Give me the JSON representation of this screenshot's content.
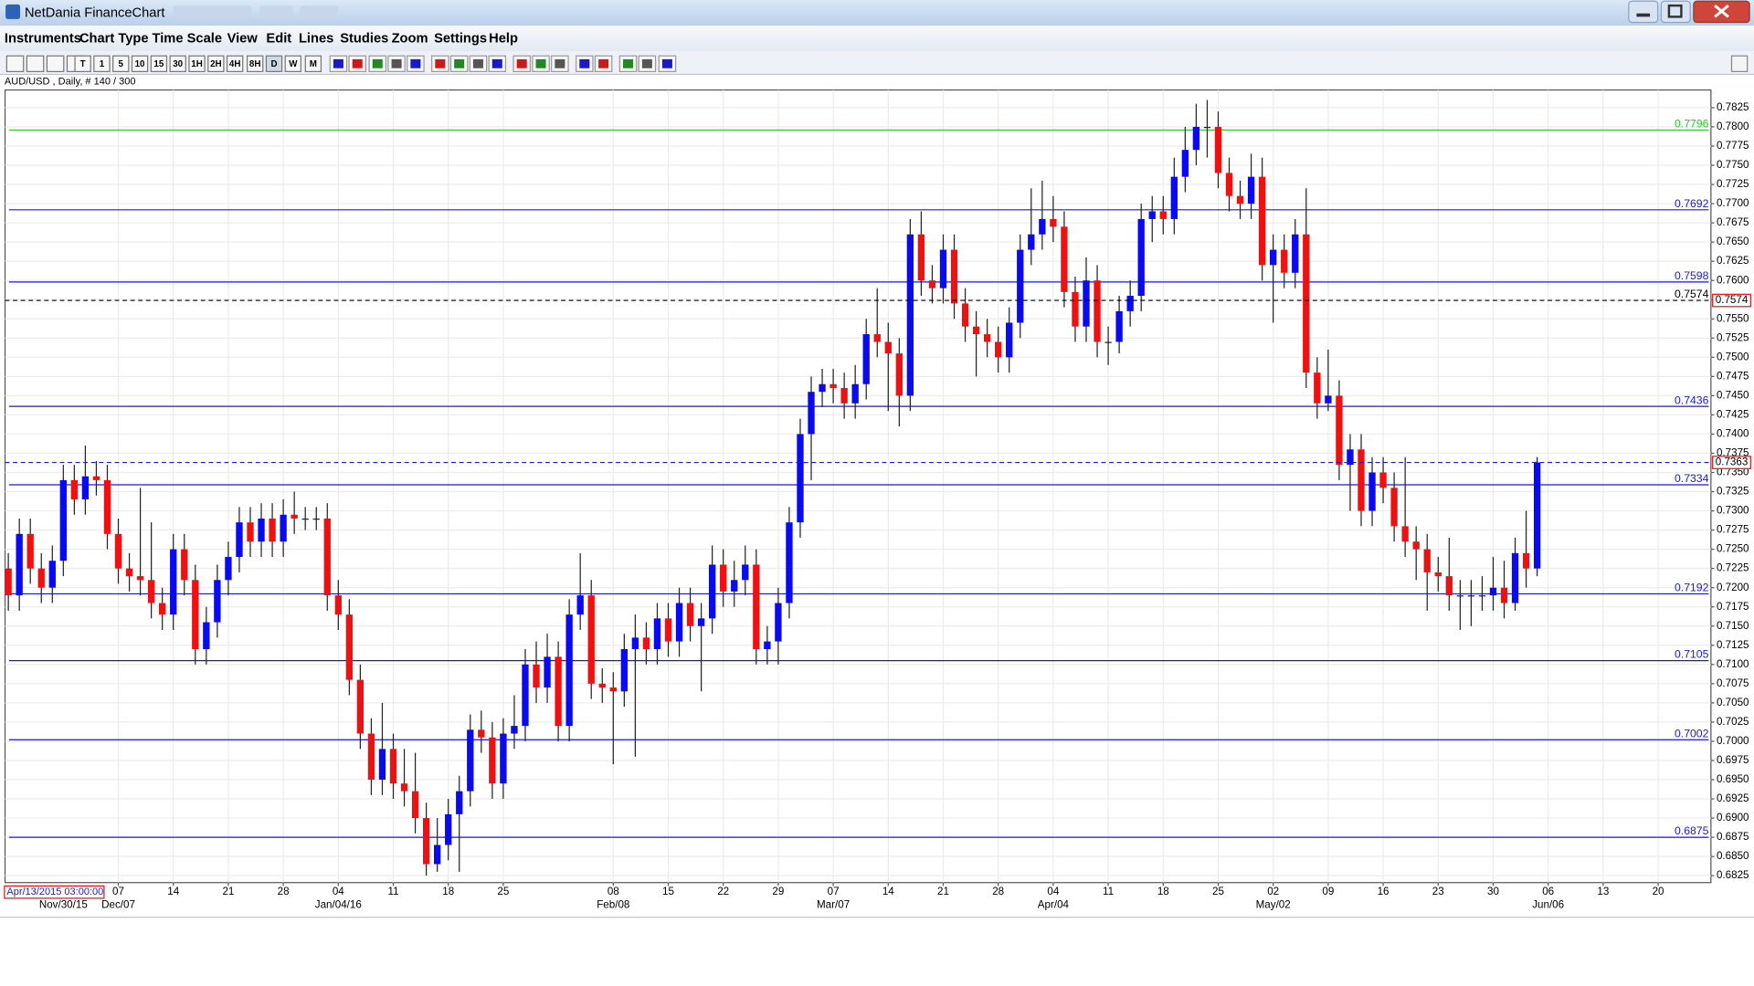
{
  "window": {
    "title": "NetDania FinanceChart"
  },
  "menu": [
    "Instruments",
    "Chart Type",
    "Time Scale",
    "View",
    "Edit",
    "Lines",
    "Studies",
    "Zoom",
    "Settings",
    "Help"
  ],
  "toolbar": {
    "timeframes": [
      "T",
      "1",
      "5",
      "10",
      "15",
      "30",
      "1H",
      "2H",
      "4H",
      "8H",
      "D",
      "W",
      "M"
    ]
  },
  "chart_data": {
    "type": "candlestick",
    "title": "AUD/USD , Daily, # 140 / 300",
    "cursor_date": "Apr/13/2015 03:00:00",
    "up_color": "#0a0aee",
    "down_color": "#ee1111",
    "open": [
      0.7225,
      0.719,
      0.727,
      0.7225,
      0.72,
      0.7235,
      0.734,
      0.7315,
      0.7345,
      0.734,
      0.727,
      0.7225,
      0.7215,
      0.721,
      0.718,
      0.7165,
      0.725,
      0.721,
      0.712,
      0.7155,
      0.721,
      0.724,
      0.7285,
      0.726,
      0.729,
      0.726,
      0.7295,
      0.729,
      0.729,
      0.729,
      0.719,
      0.7165,
      0.708,
      0.701,
      0.695,
      0.699,
      0.6945,
      0.6935,
      0.69,
      0.684,
      0.6865,
      0.6905,
      0.6935,
      0.7015,
      0.7005,
      0.6945,
      0.701,
      0.702,
      0.71,
      0.707,
      0.711,
      0.702,
      0.7165,
      0.719,
      0.7075,
      0.707,
      0.7065,
      0.712,
      0.7135,
      0.712,
      0.716,
      0.713,
      0.718,
      0.715,
      0.716,
      0.723,
      0.7195,
      0.721,
      0.723,
      0.712,
      0.713,
      0.718,
      0.7285,
      0.74,
      0.7455,
      0.7465,
      0.746,
      0.744,
      0.7465,
      0.753,
      0.752,
      0.7505,
      0.745,
      0.766,
      0.76,
      0.759,
      0.764,
      0.757,
      0.754,
      0.753,
      0.752,
      0.75,
      0.7545,
      0.764,
      0.766,
      0.768,
      0.767,
      0.7585,
      0.754,
      0.76,
      0.752,
      0.752,
      0.756,
      0.758,
      0.768,
      0.769,
      0.768,
      0.7735,
      0.777,
      0.78,
      0.78,
      0.774,
      0.771,
      0.77,
      0.7735,
      0.762,
      0.764,
      0.761,
      0.766,
      0.748,
      0.744,
      0.745,
      0.736,
      0.738,
      0.73,
      0.735,
      0.733,
      0.728,
      0.726,
      0.725,
      0.722,
      0.7215,
      0.719,
      0.719,
      0.719,
      0.719,
      0.72,
      0.718,
      0.7245,
      0.7225
    ],
    "high": [
      0.7245,
      0.729,
      0.729,
      0.7245,
      0.7255,
      0.736,
      0.736,
      0.7385,
      0.7365,
      0.736,
      0.729,
      0.7245,
      0.733,
      0.7285,
      0.72,
      0.727,
      0.727,
      0.723,
      0.7175,
      0.723,
      0.726,
      0.7305,
      0.7305,
      0.731,
      0.731,
      0.7315,
      0.7325,
      0.7305,
      0.7305,
      0.731,
      0.721,
      0.7185,
      0.71,
      0.703,
      0.705,
      0.701,
      0.699,
      0.6985,
      0.692,
      0.69,
      0.6925,
      0.6955,
      0.7035,
      0.704,
      0.7025,
      0.703,
      0.706,
      0.712,
      0.713,
      0.714,
      0.713,
      0.7185,
      0.7245,
      0.721,
      0.7095,
      0.709,
      0.714,
      0.7165,
      0.7155,
      0.718,
      0.718,
      0.72,
      0.72,
      0.718,
      0.7255,
      0.725,
      0.7235,
      0.7255,
      0.725,
      0.715,
      0.72,
      0.7305,
      0.742,
      0.7475,
      0.7485,
      0.7485,
      0.748,
      0.749,
      0.755,
      0.759,
      0.7545,
      0.7525,
      0.768,
      0.769,
      0.762,
      0.766,
      0.766,
      0.759,
      0.756,
      0.755,
      0.754,
      0.7565,
      0.766,
      0.772,
      0.773,
      0.771,
      0.769,
      0.7605,
      0.763,
      0.762,
      0.754,
      0.758,
      0.76,
      0.77,
      0.771,
      0.771,
      0.776,
      0.78,
      0.783,
      0.7835,
      0.782,
      0.776,
      0.773,
      0.7765,
      0.776,
      0.766,
      0.766,
      0.768,
      0.772,
      0.75,
      0.751,
      0.747,
      0.74,
      0.74,
      0.737,
      0.737,
      0.735,
      0.737,
      0.728,
      0.727,
      0.724,
      0.7265,
      0.721,
      0.721,
      0.7215,
      0.724,
      0.7235,
      0.7265,
      0.73,
      0.737
    ],
    "low": [
      0.717,
      0.717,
      0.7205,
      0.718,
      0.718,
      0.7215,
      0.7295,
      0.7295,
      0.732,
      0.725,
      0.7205,
      0.7195,
      0.719,
      0.716,
      0.7145,
      0.7145,
      0.719,
      0.71,
      0.71,
      0.7135,
      0.719,
      0.722,
      0.724,
      0.724,
      0.724,
      0.724,
      0.727,
      0.7275,
      0.7275,
      0.717,
      0.7145,
      0.706,
      0.699,
      0.693,
      0.693,
      0.6925,
      0.6915,
      0.688,
      0.6825,
      0.683,
      0.6845,
      0.683,
      0.6915,
      0.6985,
      0.6925,
      0.6925,
      0.699,
      0.7,
      0.705,
      0.705,
      0.7,
      0.7,
      0.7145,
      0.7055,
      0.705,
      0.697,
      0.7045,
      0.698,
      0.71,
      0.71,
      0.711,
      0.711,
      0.713,
      0.7065,
      0.714,
      0.7175,
      0.7175,
      0.719,
      0.71,
      0.71,
      0.71,
      0.716,
      0.7265,
      0.734,
      0.7435,
      0.744,
      0.742,
      0.742,
      0.7445,
      0.75,
      0.743,
      0.741,
      0.743,
      0.758,
      0.757,
      0.757,
      0.755,
      0.752,
      0.7475,
      0.75,
      0.748,
      0.748,
      0.7525,
      0.762,
      0.764,
      0.765,
      0.7565,
      0.752,
      0.752,
      0.75,
      0.749,
      0.7505,
      0.754,
      0.756,
      0.765,
      0.766,
      0.766,
      0.7715,
      0.775,
      0.776,
      0.772,
      0.769,
      0.768,
      0.768,
      0.76,
      0.7545,
      0.759,
      0.759,
      0.746,
      0.742,
      0.743,
      0.734,
      0.73,
      0.728,
      0.728,
      0.731,
      0.726,
      0.724,
      0.721,
      0.717,
      0.7195,
      0.717,
      0.7145,
      0.715,
      0.717,
      0.717,
      0.716,
      0.717,
      0.72,
      0.7215
    ],
    "close": [
      0.719,
      0.727,
      0.7225,
      0.72,
      0.7235,
      0.734,
      0.7315,
      0.7345,
      0.734,
      0.727,
      0.7225,
      0.7215,
      0.721,
      0.718,
      0.7165,
      0.725,
      0.721,
      0.712,
      0.7155,
      0.721,
      0.724,
      0.7285,
      0.726,
      0.729,
      0.726,
      0.7295,
      0.729,
      0.729,
      0.729,
      0.719,
      0.7165,
      0.708,
      0.701,
      0.695,
      0.699,
      0.6945,
      0.6935,
      0.69,
      0.684,
      0.6865,
      0.6905,
      0.6935,
      0.7015,
      0.7005,
      0.6945,
      0.701,
      0.702,
      0.71,
      0.707,
      0.711,
      0.702,
      0.7165,
      0.719,
      0.7075,
      0.707,
      0.7065,
      0.712,
      0.7135,
      0.712,
      0.716,
      0.713,
      0.718,
      0.715,
      0.716,
      0.723,
      0.7195,
      0.721,
      0.723,
      0.712,
      0.713,
      0.718,
      0.7285,
      0.74,
      0.7455,
      0.7465,
      0.746,
      0.744,
      0.7465,
      0.753,
      0.752,
      0.7505,
      0.745,
      0.766,
      0.76,
      0.759,
      0.764,
      0.757,
      0.754,
      0.753,
      0.752,
      0.75,
      0.7545,
      0.764,
      0.766,
      0.768,
      0.767,
      0.7585,
      0.754,
      0.76,
      0.752,
      0.752,
      0.756,
      0.758,
      0.768,
      0.769,
      0.768,
      0.7735,
      0.777,
      0.78,
      0.78,
      0.774,
      0.771,
      0.77,
      0.7735,
      0.762,
      0.764,
      0.761,
      0.766,
      0.748,
      0.744,
      0.745,
      0.736,
      0.738,
      0.73,
      0.735,
      0.733,
      0.728,
      0.726,
      0.725,
      0.722,
      0.7215,
      0.719,
      0.719,
      0.719,
      0.719,
      0.72,
      0.718,
      0.7245,
      0.7225,
      0.7363
    ],
    "xlim": [
      -0.3,
      154.8
    ],
    "xticks": [
      {
        "value": 10,
        "label": "07"
      },
      {
        "value": 15,
        "label": "14"
      },
      {
        "value": 20,
        "label": "21"
      },
      {
        "value": 25,
        "label": "28"
      },
      {
        "value": 30,
        "label": "04"
      },
      {
        "value": 35,
        "label": "11"
      },
      {
        "value": 40,
        "label": "18"
      },
      {
        "value": 45,
        "label": "25"
      },
      {
        "value": 55,
        "label": "08"
      },
      {
        "value": 60,
        "label": "15"
      },
      {
        "value": 65,
        "label": "22"
      },
      {
        "value": 70,
        "label": "29"
      },
      {
        "value": 75,
        "label": "07"
      },
      {
        "value": 80,
        "label": "14"
      },
      {
        "value": 85,
        "label": "21"
      },
      {
        "value": 90,
        "label": "28"
      },
      {
        "value": 95,
        "label": "04"
      },
      {
        "value": 100,
        "label": "11"
      },
      {
        "value": 105,
        "label": "18"
      },
      {
        "value": 110,
        "label": "25"
      },
      {
        "value": 115,
        "label": "02"
      },
      {
        "value": 120,
        "label": "09"
      },
      {
        "value": 125,
        "label": "16"
      },
      {
        "value": 130,
        "label": "23"
      },
      {
        "value": 135,
        "label": "30"
      },
      {
        "value": 140,
        "label": "06"
      },
      {
        "value": 145,
        "label": "13"
      },
      {
        "value": 150,
        "label": "20"
      }
    ],
    "xticks2": [
      {
        "value": 5,
        "label": "Nov/30/15"
      },
      {
        "value": 10,
        "label": "Dec/07"
      },
      {
        "value": 30,
        "label": "Jan/04/16"
      },
      {
        "value": 55,
        "label": "Feb/08"
      },
      {
        "value": 75,
        "label": "Mar/07"
      },
      {
        "value": 95,
        "label": "Apr/04"
      },
      {
        "value": 115,
        "label": "May/02"
      },
      {
        "value": 140,
        "label": "Jun/06"
      }
    ],
    "ylim": [
      0.6816,
      0.7848
    ],
    "yticks": [
      0.6825,
      {
        "value": 0.685,
        "label": "0.6850"
      },
      0.6875,
      {
        "value": 0.69,
        "label": "0.6900"
      },
      0.6925,
      {
        "value": 0.695,
        "label": "0.6950"
      },
      0.6975,
      {
        "value": 0.7,
        "label": "0.7000"
      },
      0.7025,
      {
        "value": 0.705,
        "label": "0.7050"
      },
      0.7075,
      {
        "value": 0.71,
        "label": "0.7100"
      },
      0.7125,
      {
        "value": 0.715,
        "label": "0.7150"
      },
      0.7175,
      {
        "value": 0.72,
        "label": "0.7200"
      },
      0.7225,
      {
        "value": 0.725,
        "label": "0.7250"
      },
      0.7275,
      {
        "value": 0.73,
        "label": "0.7300"
      },
      0.7325,
      {
        "value": 0.735,
        "label": "0.7350"
      },
      0.7375,
      {
        "value": 0.74,
        "label": "0.7400"
      },
      0.7425,
      {
        "value": 0.745,
        "label": "0.7450"
      },
      0.7475,
      {
        "value": 0.75,
        "label": "0.7500"
      },
      0.7525,
      {
        "value": 0.755,
        "label": "0.7550"
      },
      0.7575,
      {
        "value": 0.76,
        "label": "0.7600"
      },
      0.7625,
      {
        "value": 0.765,
        "label": "0.7650"
      },
      0.7675,
      {
        "value": 0.77,
        "label": "0.7700"
      },
      0.7725,
      {
        "value": 0.775,
        "label": "0.7750"
      },
      0.7775,
      {
        "value": 0.78,
        "label": "0.7800"
      },
      0.7825
    ],
    "grid": true,
    "levels": [
      {
        "value": 0.7796,
        "color": "#22cc22"
      },
      {
        "value": 0.7692,
        "color": "#1a1acc"
      },
      {
        "value": 0.7598,
        "color": "#1a1acc"
      },
      {
        "value": 0.7436,
        "color": "#1a1acc"
      },
      {
        "value": 0.7334,
        "color": "#1a1acc"
      },
      {
        "value": 0.7192,
        "color": "#1a1acc"
      },
      {
        "value": 0.7105,
        "color": "#1a1acc"
      },
      {
        "value": 0.7002,
        "color": "#1a1acc"
      },
      {
        "value": 0.6875,
        "color": "#1a1acc"
      }
    ],
    "price_lines": [
      {
        "value": 0.7574,
        "color": "#000000",
        "inline_label": true
      },
      {
        "value": 0.7363,
        "color": "#1a1acc",
        "inline_label": false
      }
    ]
  }
}
